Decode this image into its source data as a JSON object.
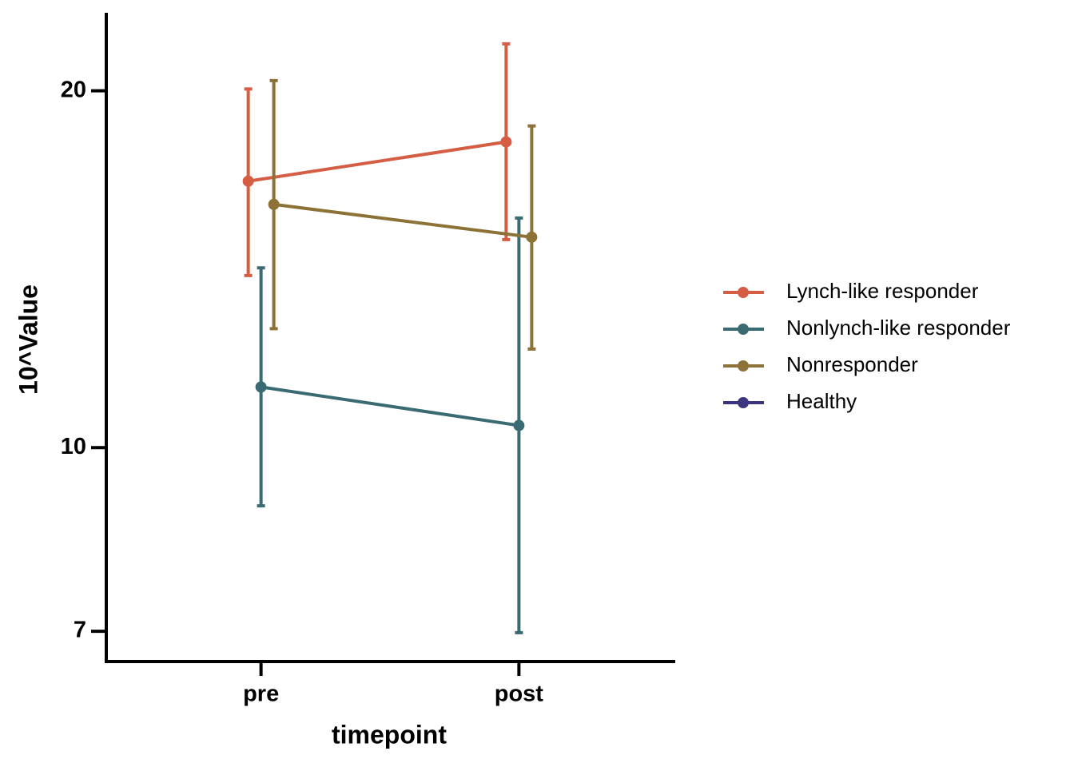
{
  "chart_data": {
    "type": "line",
    "x_label": "timepoint",
    "y_label": "10^Value",
    "categories": [
      "pre",
      "post"
    ],
    "log_y": true,
    "ylim": [
      6.6,
      23.2
    ],
    "yticks": [
      7,
      10,
      20
    ],
    "series": [
      {
        "name": "Lynch-like responder",
        "color": "#d45d43",
        "values": [
          16.78,
          18.11
        ],
        "upper": [
          20.07,
          21.91
        ],
        "lower": [
          13.97,
          14.98
        ]
      },
      {
        "name": "Nonlynch-like responder",
        "color": "#3a6b73",
        "values": [
          11.25,
          10.44
        ],
        "upper": [
          14.18,
          15.62
        ],
        "lower": [
          8.93,
          6.98
        ]
      },
      {
        "name": "Nonresponder",
        "color": "#8c7236",
        "values": [
          16.04,
          15.05
        ],
        "upper": [
          20.4,
          18.68
        ],
        "lower": [
          12.6,
          12.11
        ]
      },
      {
        "name": "Healthy",
        "color": "#3b3580",
        "values": [
          null,
          null
        ],
        "upper": [
          null,
          null
        ],
        "lower": [
          null,
          null
        ]
      }
    ]
  }
}
